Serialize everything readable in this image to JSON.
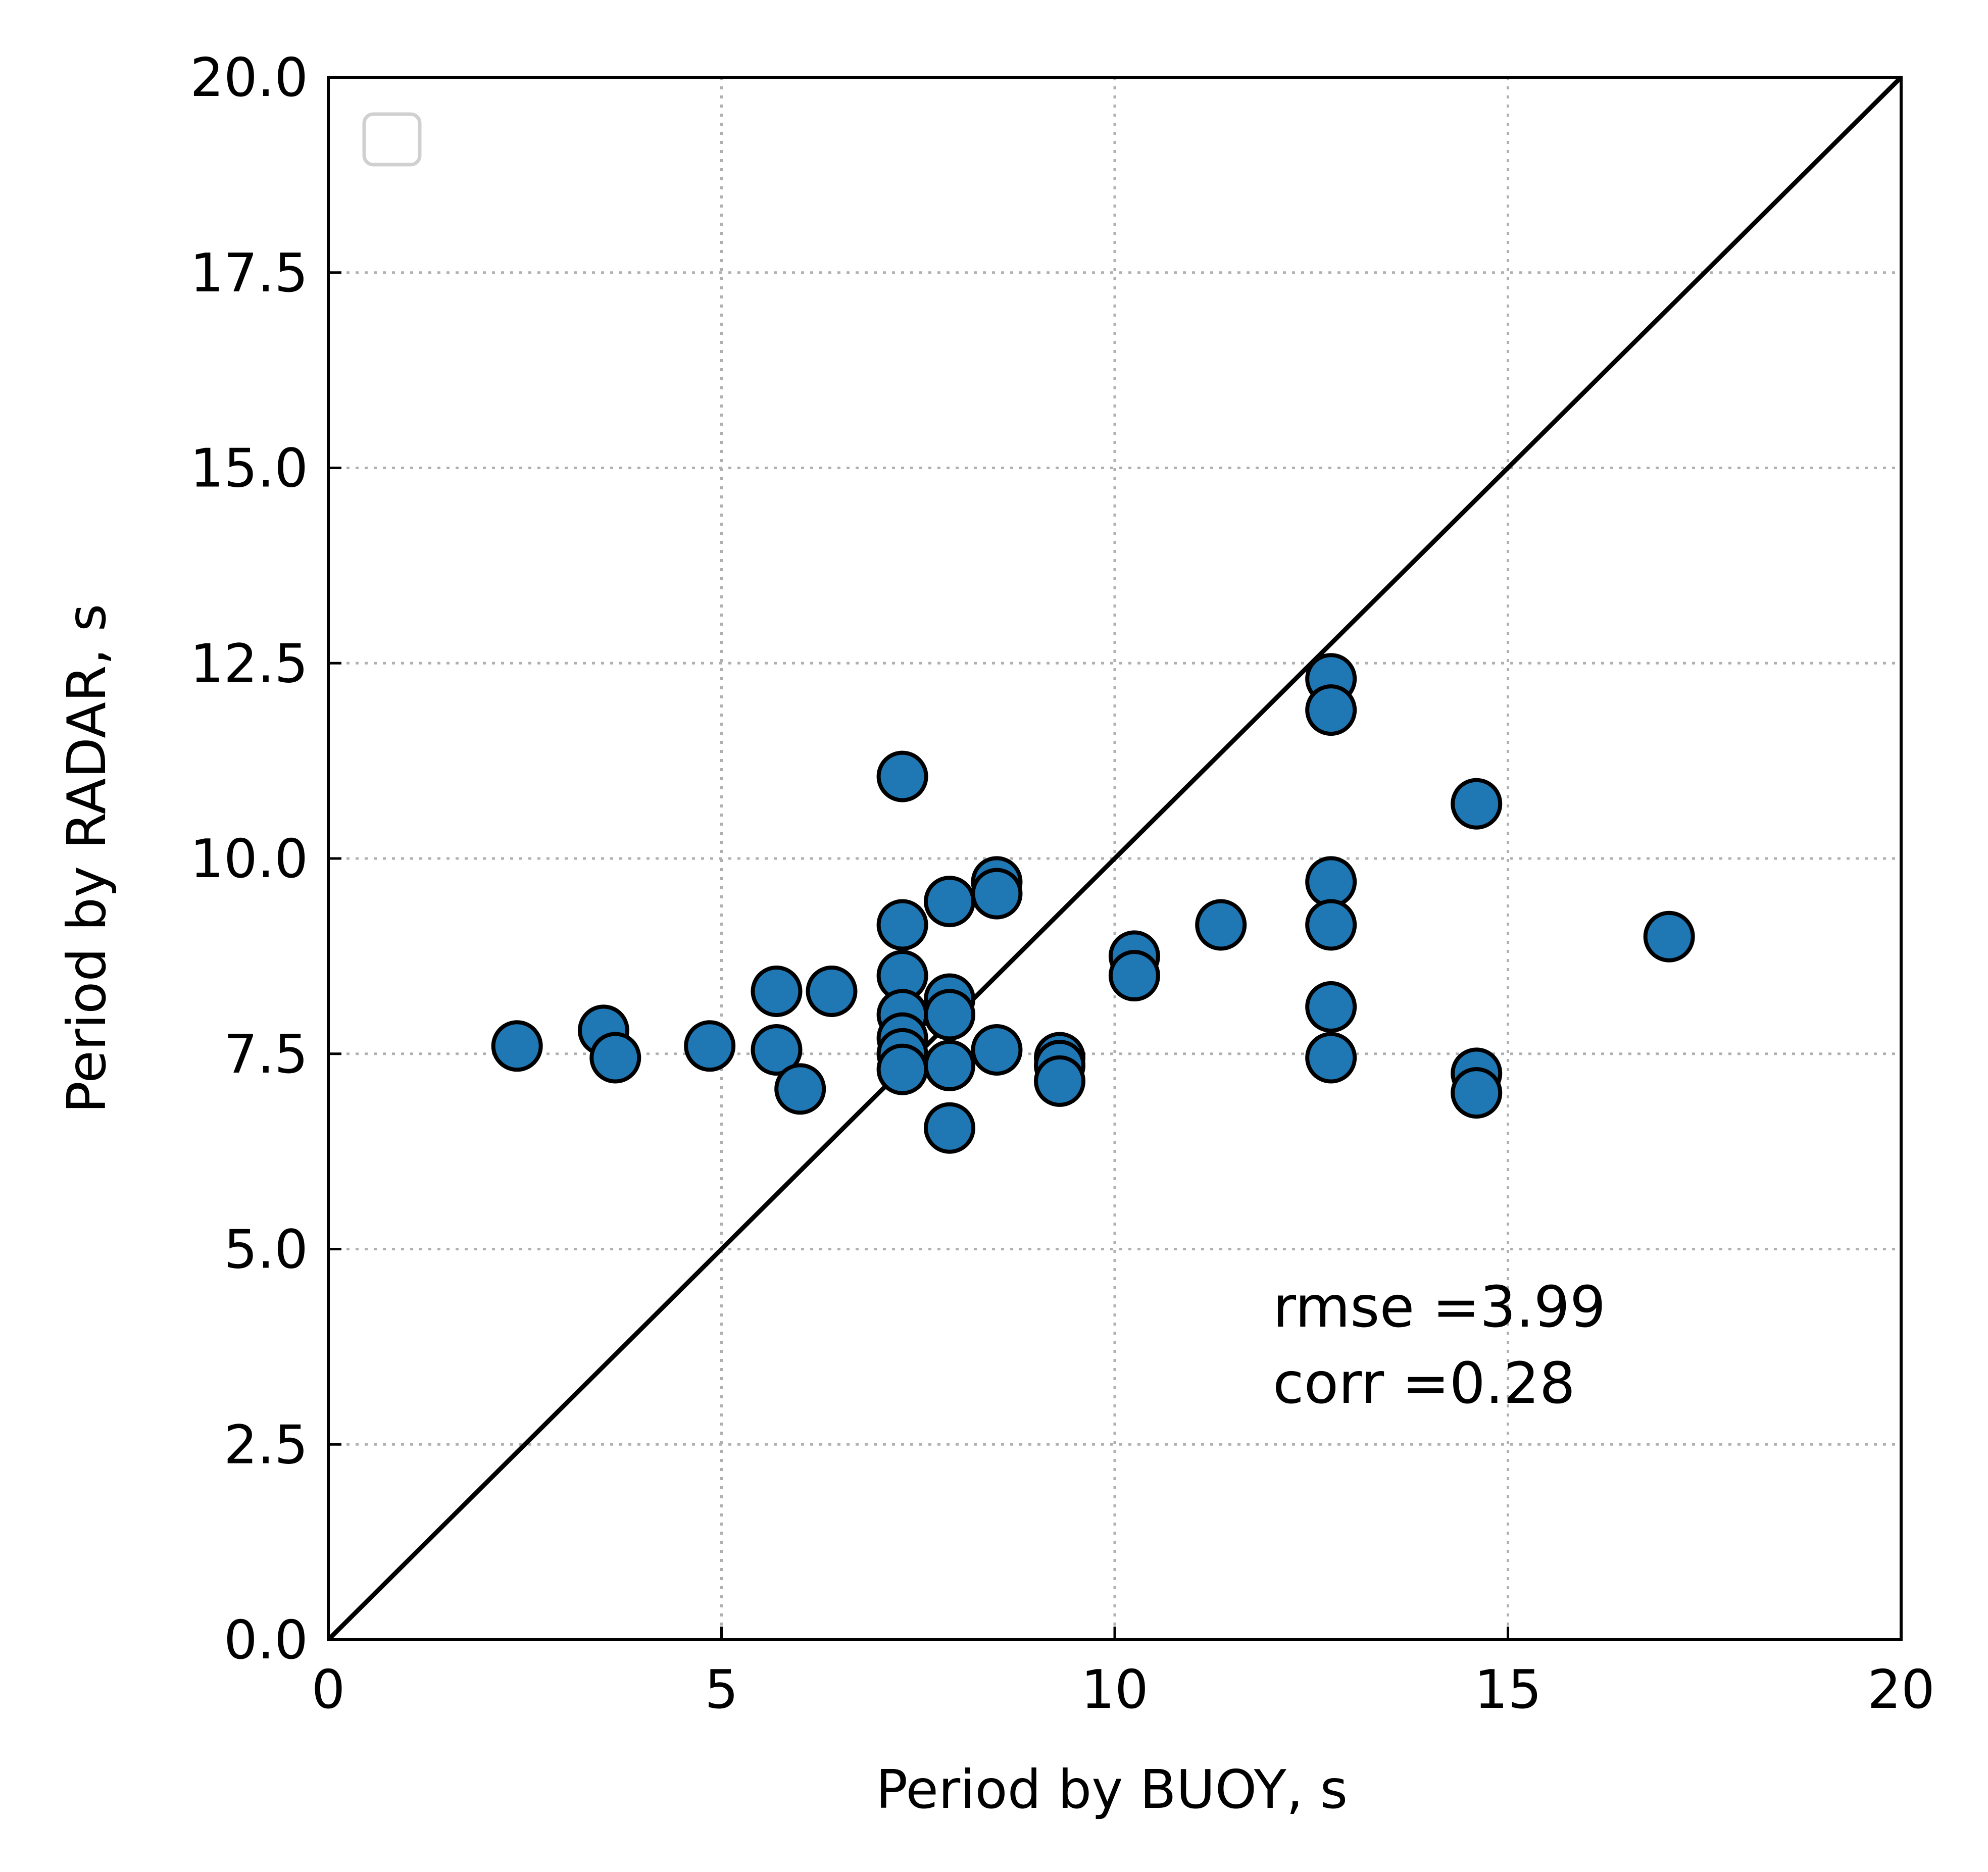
{
  "chart_data": {
    "type": "scatter",
    "title": "",
    "xlabel": "Period by BUOY, s",
    "ylabel": "Period by RADAR, s",
    "xlim": [
      0,
      20
    ],
    "ylim": [
      0,
      20
    ],
    "xticks": [
      "0",
      "5",
      "10",
      "15",
      "20"
    ],
    "yticks": [
      "0.0",
      "2.5",
      "5.0",
      "7.5",
      "10.0",
      "12.5",
      "15.0",
      "17.5",
      "20.0"
    ],
    "grid": true,
    "legend": "top-left (empty)",
    "reference_line": "y = x",
    "marker_color": "#1f77b4",
    "marker_edge_color": "#000000",
    "annotations": [
      "rmse =3.99",
      "corr =0.28"
    ],
    "series": [
      {
        "points": [
          {
            "x": 2.4,
            "y": 7.6
          },
          {
            "x": 3.5,
            "y": 7.8
          },
          {
            "x": 3.65,
            "y": 7.45
          },
          {
            "x": 4.85,
            "y": 7.6
          },
          {
            "x": 5.7,
            "y": 8.3
          },
          {
            "x": 5.7,
            "y": 7.55
          },
          {
            "x": 6.0,
            "y": 7.05
          },
          {
            "x": 6.4,
            "y": 8.3
          },
          {
            "x": 7.3,
            "y": 11.05
          },
          {
            "x": 7.3,
            "y": 9.15
          },
          {
            "x": 7.3,
            "y": 8.5
          },
          {
            "x": 7.3,
            "y": 8.0
          },
          {
            "x": 7.3,
            "y": 7.7
          },
          {
            "x": 7.3,
            "y": 7.5
          },
          {
            "x": 7.3,
            "y": 7.3
          },
          {
            "x": 7.9,
            "y": 9.45
          },
          {
            "x": 7.9,
            "y": 8.2
          },
          {
            "x": 7.9,
            "y": 8.0
          },
          {
            "x": 7.9,
            "y": 7.35
          },
          {
            "x": 7.9,
            "y": 6.55
          },
          {
            "x": 8.5,
            "y": 9.7
          },
          {
            "x": 8.5,
            "y": 9.55
          },
          {
            "x": 8.5,
            "y": 7.55
          },
          {
            "x": 9.3,
            "y": 7.45
          },
          {
            "x": 9.3,
            "y": 7.35
          },
          {
            "x": 9.3,
            "y": 7.15
          },
          {
            "x": 10.25,
            "y": 8.75
          },
          {
            "x": 10.25,
            "y": 8.5
          },
          {
            "x": 11.35,
            "y": 9.15
          },
          {
            "x": 12.75,
            "y": 12.3
          },
          {
            "x": 12.75,
            "y": 11.9
          },
          {
            "x": 12.75,
            "y": 9.7
          },
          {
            "x": 12.75,
            "y": 9.15
          },
          {
            "x": 12.75,
            "y": 8.1
          },
          {
            "x": 12.75,
            "y": 7.45
          },
          {
            "x": 14.6,
            "y": 10.7
          },
          {
            "x": 14.6,
            "y": 7.25
          },
          {
            "x": 14.6,
            "y": 7.0
          },
          {
            "x": 17.05,
            "y": 9.0
          }
        ]
      }
    ]
  }
}
